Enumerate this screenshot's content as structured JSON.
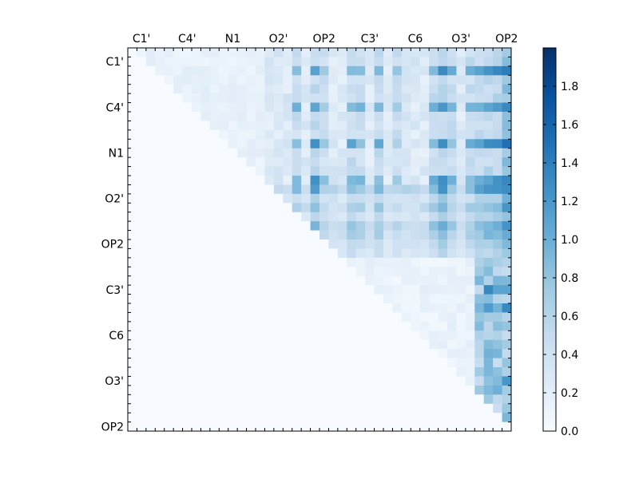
{
  "chart_data": {
    "type": "heatmap",
    "title": "",
    "xlabel": "",
    "ylabel": "",
    "colormap": "Blues",
    "grid_size": 42,
    "x_tick_labels": [
      "C1'",
      "C4'",
      "N1",
      "O2'",
      "OP2",
      "C3'",
      "C6",
      "O3'",
      "OP2"
    ],
    "y_tick_labels": [
      "C1'",
      "C4'",
      "N1",
      "O2'",
      "OP2",
      "C3'",
      "C6",
      "O3'",
      "OP2"
    ],
    "x_axis_position": "top",
    "value_range": [
      0,
      2.0
    ],
    "colorbar": {
      "range": [
        0,
        2.0
      ],
      "ticks": [
        0.0,
        0.2,
        0.4,
        0.6,
        0.8,
        1.0,
        1.2,
        1.4,
        1.6,
        1.8
      ],
      "tick_labels": [
        "0.0",
        "0.2",
        "0.4",
        "0.6",
        "0.8",
        "1.0",
        "1.2",
        "1.4",
        "1.6",
        "1.8"
      ],
      "position": "right"
    },
    "legend": "none",
    "grid": false
  }
}
